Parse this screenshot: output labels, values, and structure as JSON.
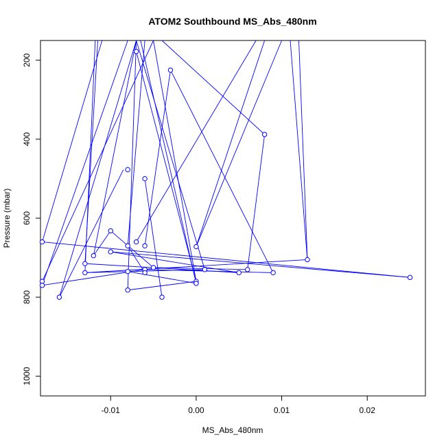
{
  "chart_data": {
    "type": "line",
    "title": "ATOM2 Southbound MS_Abs_480nm",
    "xlabel": "MS_Abs_480nm",
    "ylabel": "Pressure (mbar)",
    "xlim": [
      -0.0182,
      0.0268
    ],
    "ylim": [
      1050,
      150
    ],
    "y_reversed": true,
    "x_ticks": [
      -0.01,
      0.0,
      0.01,
      0.02
    ],
    "x_tick_labels": [
      "-0.01",
      "0.00",
      "0.01",
      "0.02"
    ],
    "y_ticks": [
      200,
      400,
      600,
      800,
      1000
    ],
    "y_tick_labels": [
      "200",
      "400",
      "600",
      "800",
      "1000"
    ],
    "grid": false,
    "legend": "none",
    "color": "#0000ff",
    "series": [
      {
        "x": [
          -0.0175,
          -0.0112,
          -0.0082,
          -0.0145,
          -0.0112,
          -0.0082,
          -0.0155,
          -0.0111,
          -0.008,
          -0.007,
          -0.01,
          -0.008,
          -0.015,
          -0.014,
          -0.007,
          -0.001,
          -0.012,
          -0.01,
          0.001,
          -0.006,
          -0.008,
          -0.006,
          -0.0165,
          -0.0175,
          -0.0125,
          -0.0085,
          -0.006,
          0.0085,
          0.008,
          0.006,
          0.001,
          0.007,
          -0.0055,
          -0.007,
          -0.004,
          -0.003,
          0.009,
          0.0,
          0.008,
          -0.005,
          -0.007,
          0.013,
          -0.013,
          0.005,
          -0.006,
          0.0,
          -0.007,
          -0.013,
          0.0,
          0.025,
          -0.018
        ],
        "y": [
          660,
          150,
          150,
          150,
          150,
          150,
          150,
          150,
          150,
          150,
          150,
          150,
          150,
          150,
          150,
          150,
          150,
          150,
          150,
          150,
          150,
          150,
          150,
          760,
          695,
          477,
          500,
          150,
          388,
          730,
          760,
          150,
          150,
          178,
          800,
          225,
          738,
          672,
          150,
          725,
          660,
          705,
          738,
          738,
          730,
          762,
          660,
          715,
          765,
          750,
          660
        ]
      }
    ],
    "points": [
      [
        -0.018,
        660
      ],
      [
        -0.018,
        760
      ],
      [
        -0.018,
        770
      ],
      [
        -0.016,
        800
      ],
      [
        -0.013,
        715
      ],
      [
        -0.013,
        738
      ],
      [
        -0.012,
        695
      ],
      [
        -0.01,
        632
      ],
      [
        -0.01,
        685
      ],
      [
        -0.008,
        477
      ],
      [
        -0.008,
        670
      ],
      [
        -0.008,
        735
      ],
      [
        -0.008,
        782
      ],
      [
        -0.007,
        178
      ],
      [
        -0.007,
        660
      ],
      [
        -0.006,
        500
      ],
      [
        -0.006,
        670
      ],
      [
        -0.006,
        730
      ],
      [
        -0.006,
        738
      ],
      [
        -0.005,
        725
      ],
      [
        -0.004,
        800
      ],
      [
        -0.003,
        225
      ],
      [
        0.0,
        672
      ],
      [
        0.0,
        760
      ],
      [
        0.0,
        765
      ],
      [
        0.001,
        730
      ],
      [
        0.005,
        738
      ],
      [
        0.006,
        730
      ],
      [
        0.008,
        388
      ],
      [
        0.009,
        738
      ],
      [
        0.013,
        705
      ],
      [
        0.025,
        750
      ]
    ],
    "segments": [
      [
        -0.018,
        660,
        -0.011,
        150
      ],
      [
        -0.018,
        760,
        -0.005,
        150
      ],
      [
        -0.018,
        770,
        -0.008,
        150
      ],
      [
        -0.016,
        800,
        -0.0085,
        477
      ],
      [
        -0.016,
        800,
        -0.007,
        150
      ],
      [
        -0.013,
        715,
        -0.0115,
        150
      ],
      [
        -0.013,
        738,
        -0.0118,
        150
      ],
      [
        -0.012,
        695,
        -0.007,
        150
      ],
      [
        -0.01,
        632,
        -0.012,
        695
      ],
      [
        -0.008,
        670,
        -0.006,
        150
      ],
      [
        -0.008,
        782,
        -0.007,
        150
      ],
      [
        -0.007,
        178,
        0.0,
        760
      ],
      [
        -0.007,
        660,
        0.007,
        150
      ],
      [
        -0.006,
        500,
        -0.004,
        800
      ],
      [
        -0.006,
        670,
        -0.003,
        225
      ],
      [
        -0.003,
        225,
        0.009,
        738
      ],
      [
        0.0,
        672,
        0.008,
        150
      ],
      [
        0.0,
        760,
        -0.005,
        150
      ],
      [
        0.0,
        765,
        -0.0065,
        150
      ],
      [
        0.006,
        730,
        0.008,
        388
      ],
      [
        0.008,
        388,
        -0.004,
        150
      ],
      [
        0.013,
        705,
        0.011,
        150
      ],
      [
        0.013,
        705,
        -0.013,
        738
      ],
      [
        0.025,
        750,
        -0.018,
        660
      ],
      [
        0.025,
        750,
        -0.01,
        685
      ],
      [
        0.001,
        730,
        -0.007,
        150
      ],
      [
        0.005,
        738,
        -0.013,
        715
      ],
      [
        -0.006,
        730,
        -0.018,
        770
      ],
      [
        -0.008,
        735,
        0.0,
        765
      ],
      [
        -0.005,
        725,
        -0.01,
        632
      ],
      [
        -0.006,
        738,
        -0.008,
        670
      ],
      [
        0.001,
        730,
        -0.013,
        738
      ],
      [
        0.009,
        738,
        -0.006,
        730
      ],
      [
        -0.008,
        782,
        0.0,
        760
      ],
      [
        -0.005,
        725,
        0.006,
        730
      ],
      [
        -0.01,
        685,
        0.005,
        738
      ],
      [
        0.012,
        150,
        0.013,
        705
      ],
      [
        0.01,
        150,
        0.0,
        672
      ]
    ]
  }
}
